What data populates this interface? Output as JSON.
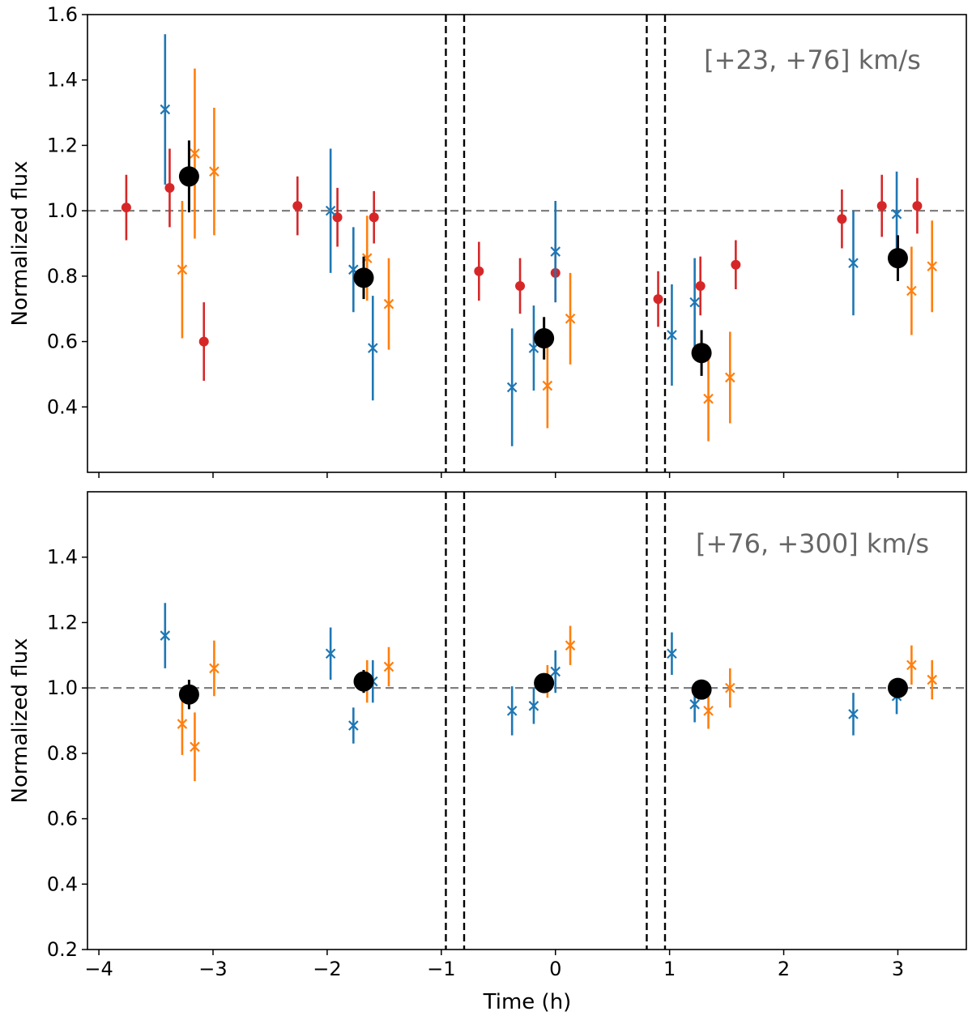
{
  "figure": {
    "xlabel": "Time (h)"
  },
  "chart_data": [
    {
      "type": "scatter",
      "panel": "top",
      "annotation": "[+23, +76] km/s",
      "xlabel": "",
      "ylabel": "Normalized flux",
      "xlim": [
        -4.1,
        3.6
      ],
      "ylim": [
        0.2,
        1.6
      ],
      "yticks": [
        0.4,
        0.6,
        0.8,
        1.0,
        1.2,
        1.4,
        1.6
      ],
      "xticks": [
        -4,
        -3,
        -2,
        -1,
        0,
        1,
        2,
        3
      ],
      "show_xtick_labels": false,
      "reference_line": 1.0,
      "vlines": [
        -0.96,
        -0.8,
        0.8,
        0.96
      ],
      "series": [
        {
          "name": "red",
          "marker": "circle",
          "color": "#d62728",
          "points": [
            {
              "x": -3.76,
              "y": 1.01,
              "err": 0.1
            },
            {
              "x": -3.38,
              "y": 1.07,
              "err": 0.12
            },
            {
              "x": -3.08,
              "y": 0.6,
              "err": 0.12
            },
            {
              "x": -2.26,
              "y": 1.015,
              "err": 0.09
            },
            {
              "x": -1.91,
              "y": 0.98,
              "err": 0.09
            },
            {
              "x": -1.59,
              "y": 0.98,
              "err": 0.08
            },
            {
              "x": -0.67,
              "y": 0.815,
              "err": 0.09
            },
            {
              "x": -0.31,
              "y": 0.77,
              "err": 0.085
            },
            {
              "x": 0.0,
              "y": 0.81,
              "err": 0.09
            },
            {
              "x": 0.9,
              "y": 0.73,
              "err": 0.085
            },
            {
              "x": 1.27,
              "y": 0.77,
              "err": 0.09
            },
            {
              "x": 1.58,
              "y": 0.835,
              "err": 0.075
            },
            {
              "x": 2.51,
              "y": 0.975,
              "err": 0.09
            },
            {
              "x": 2.86,
              "y": 1.015,
              "err": 0.095
            },
            {
              "x": 3.17,
              "y": 1.015,
              "err": 0.085
            }
          ]
        },
        {
          "name": "blue",
          "marker": "x",
          "color": "#1f77b4",
          "points": [
            {
              "x": -3.42,
              "y": 1.31,
              "err": 0.23
            },
            {
              "x": -1.97,
              "y": 1.0,
              "err": 0.19
            },
            {
              "x": -1.77,
              "y": 0.82,
              "err": 0.13
            },
            {
              "x": -1.6,
              "y": 0.58,
              "err": 0.16
            },
            {
              "x": -0.38,
              "y": 0.46,
              "err": 0.18
            },
            {
              "x": -0.19,
              "y": 0.58,
              "err": 0.13
            },
            {
              "x": 0.0,
              "y": 0.875,
              "err": 0.155
            },
            {
              "x": 1.02,
              "y": 0.62,
              "err": 0.155
            },
            {
              "x": 1.22,
              "y": 0.72,
              "err": 0.135
            },
            {
              "x": 2.61,
              "y": 0.84,
              "err": 0.16
            },
            {
              "x": 2.99,
              "y": 0.99,
              "err": 0.13
            }
          ]
        },
        {
          "name": "orange",
          "marker": "x",
          "color": "#ff7f0e",
          "points": [
            {
              "x": -3.27,
              "y": 0.82,
              "err": 0.21
            },
            {
              "x": -3.16,
              "y": 1.175,
              "err": 0.26
            },
            {
              "x": -2.99,
              "y": 1.12,
              "err": 0.195
            },
            {
              "x": -1.65,
              "y": 0.855,
              "err": 0.13
            },
            {
              "x": -1.46,
              "y": 0.715,
              "err": 0.14
            },
            {
              "x": -0.07,
              "y": 0.465,
              "err": 0.13
            },
            {
              "x": 0.13,
              "y": 0.67,
              "err": 0.14
            },
            {
              "x": 1.34,
              "y": 0.425,
              "err": 0.13
            },
            {
              "x": 1.53,
              "y": 0.49,
              "err": 0.14
            },
            {
              "x": 3.12,
              "y": 0.755,
              "err": 0.135
            },
            {
              "x": 3.3,
              "y": 0.83,
              "err": 0.14
            }
          ]
        },
        {
          "name": "black",
          "marker": "circle-large",
          "color": "#000000",
          "points": [
            {
              "x": -3.21,
              "y": 1.105,
              "err": 0.11
            },
            {
              "x": -1.68,
              "y": 0.795,
              "err": 0.065
            },
            {
              "x": -0.1,
              "y": 0.61,
              "err": 0.065
            },
            {
              "x": 1.28,
              "y": 0.565,
              "err": 0.07
            },
            {
              "x": 3.0,
              "y": 0.855,
              "err": 0.07
            }
          ]
        }
      ]
    },
    {
      "type": "scatter",
      "panel": "bottom",
      "annotation": "[+76, +300] km/s",
      "xlabel": "Time (h)",
      "ylabel": "Normalized flux",
      "xlim": [
        -4.1,
        3.6
      ],
      "ylim": [
        0.2,
        1.6
      ],
      "yticks": [
        0.2,
        0.4,
        0.6,
        0.8,
        1.0,
        1.2,
        1.4
      ],
      "xticks": [
        -4,
        -3,
        -2,
        -1,
        0,
        1,
        2,
        3
      ],
      "show_xtick_labels": true,
      "reference_line": 1.0,
      "vlines": [
        -0.96,
        -0.8,
        0.8,
        0.96
      ],
      "series": [
        {
          "name": "blue",
          "marker": "x",
          "color": "#1f77b4",
          "points": [
            {
              "x": -3.42,
              "y": 1.16,
              "err": 0.1
            },
            {
              "x": -1.97,
              "y": 1.105,
              "err": 0.08
            },
            {
              "x": -1.77,
              "y": 0.885,
              "err": 0.055
            },
            {
              "x": -1.6,
              "y": 1.02,
              "err": 0.065
            },
            {
              "x": -0.38,
              "y": 0.93,
              "err": 0.075
            },
            {
              "x": -0.19,
              "y": 0.945,
              "err": 0.055
            },
            {
              "x": 0.0,
              "y": 1.05,
              "err": 0.065
            },
            {
              "x": 1.02,
              "y": 1.105,
              "err": 0.065
            },
            {
              "x": 1.22,
              "y": 0.95,
              "err": 0.055
            },
            {
              "x": 2.61,
              "y": 0.92,
              "err": 0.065
            },
            {
              "x": 2.99,
              "y": 0.975,
              "err": 0.055
            }
          ]
        },
        {
          "name": "orange",
          "marker": "x",
          "color": "#ff7f0e",
          "points": [
            {
              "x": -3.27,
              "y": 0.89,
              "err": 0.095
            },
            {
              "x": -3.16,
              "y": 0.82,
              "err": 0.105
            },
            {
              "x": -2.99,
              "y": 1.06,
              "err": 0.085
            },
            {
              "x": -1.65,
              "y": 1.02,
              "err": 0.065
            },
            {
              "x": -1.46,
              "y": 1.065,
              "err": 0.06
            },
            {
              "x": -0.07,
              "y": 1.02,
              "err": 0.05
            },
            {
              "x": 0.13,
              "y": 1.13,
              "err": 0.06
            },
            {
              "x": 1.34,
              "y": 0.93,
              "err": 0.055
            },
            {
              "x": 1.53,
              "y": 1.0,
              "err": 0.06
            },
            {
              "x": 3.12,
              "y": 1.07,
              "err": 0.06
            },
            {
              "x": 3.3,
              "y": 1.025,
              "err": 0.06
            }
          ]
        },
        {
          "name": "black",
          "marker": "circle-large",
          "color": "#000000",
          "points": [
            {
              "x": -3.21,
              "y": 0.98,
              "err": 0.045
            },
            {
              "x": -1.68,
              "y": 1.02,
              "err": 0.035
            },
            {
              "x": -0.1,
              "y": 1.015,
              "err": 0.03
            },
            {
              "x": 1.28,
              "y": 0.995,
              "err": 0.03
            },
            {
              "x": 3.0,
              "y": 1.0,
              "err": 0.03
            }
          ]
        }
      ]
    }
  ]
}
